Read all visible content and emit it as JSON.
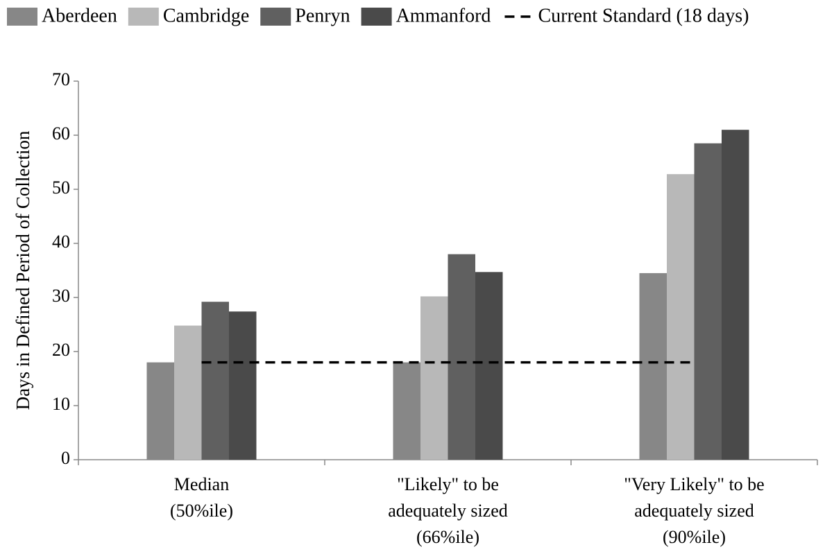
{
  "chart_data": {
    "type": "bar",
    "y_label": "Days in Defined Period of Collection",
    "categories": [
      [
        "Median",
        "(50%ile)"
      ],
      [
        "\"Likely\" to be",
        "adequately sized",
        "(66%ile)"
      ],
      [
        "\"Very Likely\" to be",
        "adequately sized",
        "(90%ile)"
      ]
    ],
    "series": [
      {
        "name": "Aberdeen",
        "color": "#878787",
        "values": [
          18,
          18,
          34.5
        ]
      },
      {
        "name": "Cambridge",
        "color": "#b8b8b8",
        "values": [
          24.8,
          30.2,
          52.8
        ]
      },
      {
        "name": "Penryn",
        "color": "#606060",
        "values": [
          29.2,
          38,
          58.5
        ]
      },
      {
        "name": "Ammanford",
        "color": "#4a4a4a",
        "values": [
          27.4,
          34.7,
          61
        ]
      },
      {
        "name": "Current Standard (18 days)",
        "type": "line",
        "dashed": true,
        "color": "#000000",
        "values": [
          18,
          18,
          18
        ]
      }
    ],
    "ylim": [
      0,
      70
    ],
    "yticks": [
      0,
      10,
      20,
      30,
      40,
      50,
      60,
      70
    ],
    "grid": false,
    "legend": "top"
  }
}
